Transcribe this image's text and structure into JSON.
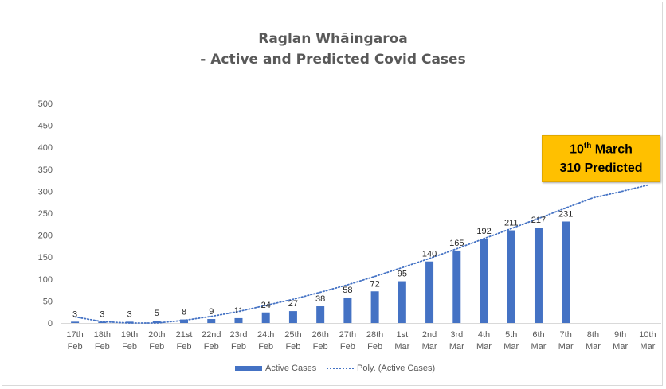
{
  "chart_data": {
    "type": "bar",
    "title_line1": "Raglan Whāingaroa",
    "title_line2": "- Active and Predicted Covid Cases",
    "categories": [
      [
        "17th",
        "Feb"
      ],
      [
        "18th",
        "Feb"
      ],
      [
        "19th",
        "Feb"
      ],
      [
        "20th",
        "Feb"
      ],
      [
        "21st",
        "Feb"
      ],
      [
        "22nd",
        "Feb"
      ],
      [
        "23rd",
        "Feb"
      ],
      [
        "24th",
        "Feb"
      ],
      [
        "25th",
        "Feb"
      ],
      [
        "26th",
        "Feb"
      ],
      [
        "27th",
        "Feb"
      ],
      [
        "28th",
        "Feb"
      ],
      [
        "1st",
        "Mar"
      ],
      [
        "2nd",
        "Mar"
      ],
      [
        "3rd",
        "Mar"
      ],
      [
        "4th",
        "Mar"
      ],
      [
        "5th",
        "Mar"
      ],
      [
        "6th",
        "Mar"
      ],
      [
        "7th",
        "Mar"
      ],
      [
        "8th",
        "Mar"
      ],
      [
        "9th",
        "Mar"
      ],
      [
        "10th",
        "Mar"
      ]
    ],
    "series": [
      {
        "name": "Active Cases",
        "color": "#4472c4",
        "values": [
          3,
          3,
          3,
          5,
          8,
          9,
          11,
          24,
          27,
          38,
          58,
          72,
          95,
          140,
          165,
          192,
          211,
          217,
          231,
          null,
          null,
          null
        ]
      }
    ],
    "trendline": {
      "name": "Poly. (Active Cases)",
      "style": "dotted",
      "color": "#4472c4",
      "values": [
        14,
        3,
        -1,
        0,
        6,
        15,
        26,
        40,
        54,
        70,
        87,
        106,
        126,
        147,
        169,
        192,
        215,
        238,
        262,
        285,
        299,
        314
      ]
    },
    "ylim": [
      0,
      500
    ],
    "yticks": [
      0,
      50,
      100,
      150,
      200,
      250,
      300,
      350,
      400,
      450,
      500
    ],
    "xlabel": "",
    "ylabel": "",
    "grid": false,
    "legend": "bottom",
    "callout": {
      "line1_day": "10",
      "line1_suffix": "th",
      "line1_month": " March",
      "line2": "310 Predicted",
      "color": "#ffc000"
    }
  }
}
